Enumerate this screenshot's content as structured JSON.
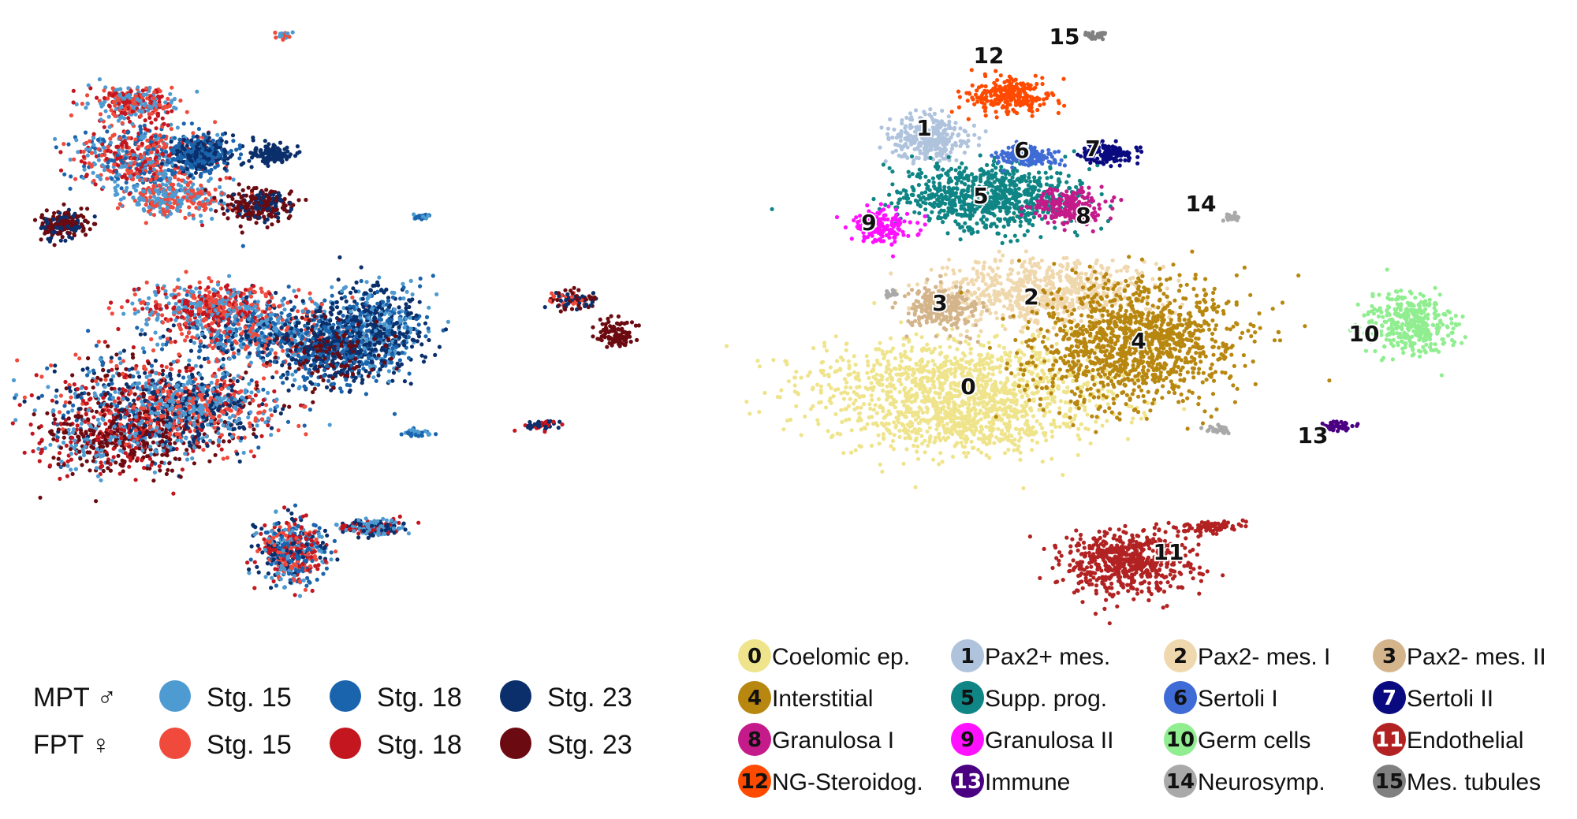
{
  "chart_data": [
    {
      "type": "scatter",
      "title": "",
      "xlabel": "",
      "ylabel": "",
      "grid": false,
      "axes_visible": false,
      "legend_placement": "bottom",
      "legend": {
        "rows": [
          {
            "label": "MPT ♂",
            "series": [
              {
                "name": "Stg. 15",
                "color": "#4e9bd2"
              },
              {
                "name": "Stg. 18",
                "color": "#1a64ad"
              },
              {
                "name": "Stg. 23",
                "color": "#0a2f6b"
              }
            ]
          },
          {
            "label": "FPT ♀",
            "series": [
              {
                "name": "Stg. 15",
                "color": "#ef4a3c"
              },
              {
                "name": "Stg. 18",
                "color": "#c3161f"
              },
              {
                "name": "Stg. 23",
                "color": "#6b0a10"
              }
            ]
          }
        ]
      }
    },
    {
      "type": "scatter",
      "title": "",
      "xlabel": "",
      "ylabel": "",
      "grid": false,
      "axes_visible": false,
      "legend_placement": "bottom",
      "clusters": [
        {
          "id": "0",
          "name": "Coelomic ep.",
          "color": "#efe48c",
          "num_color": "#111111"
        },
        {
          "id": "1",
          "name": "Pax2+ mes.",
          "color": "#afc3dd",
          "num_color": "#111111"
        },
        {
          "id": "2",
          "name": "Pax2- mes. I",
          "color": "#f0d8ae",
          "num_color": "#111111"
        },
        {
          "id": "3",
          "name": "Pax2- mes. II",
          "color": "#d4b58b",
          "num_color": "#111111"
        },
        {
          "id": "4",
          "name": "Interstitial",
          "color": "#b8870f",
          "num_color": "#111111"
        },
        {
          "id": "5",
          "name": "Supp. prog.",
          "color": "#0f8585",
          "num_color": "#111111"
        },
        {
          "id": "6",
          "name": "Sertoli I",
          "color": "#3f6bd6",
          "num_color": "#111111"
        },
        {
          "id": "7",
          "name": "Sertoli II",
          "color": "#0a0a80",
          "num_color": "#ffffff"
        },
        {
          "id": "8",
          "name": "Granulosa I",
          "color": "#c41a8a",
          "num_color": "#111111"
        },
        {
          "id": "9",
          "name": "Granulosa II",
          "color": "#ff10ff",
          "num_color": "#111111"
        },
        {
          "id": "10",
          "name": "Germ cells",
          "color": "#90ee90",
          "num_color": "#111111"
        },
        {
          "id": "11",
          "name": "Endothelial",
          "color": "#b22222",
          "num_color": "#ffffff"
        },
        {
          "id": "12",
          "name": "NG-Steroidog.",
          "color": "#ff4a00",
          "num_color": "#111111"
        },
        {
          "id": "13",
          "name": "Immune",
          "color": "#4b0082",
          "num_color": "#ffffff"
        },
        {
          "id": "14",
          "name": "Neurosymp.",
          "color": "#a9a9a9",
          "num_color": "#111111"
        },
        {
          "id": "15",
          "name": "Mes. tubules",
          "color": "#808080",
          "num_color": "#111111"
        }
      ]
    }
  ]
}
